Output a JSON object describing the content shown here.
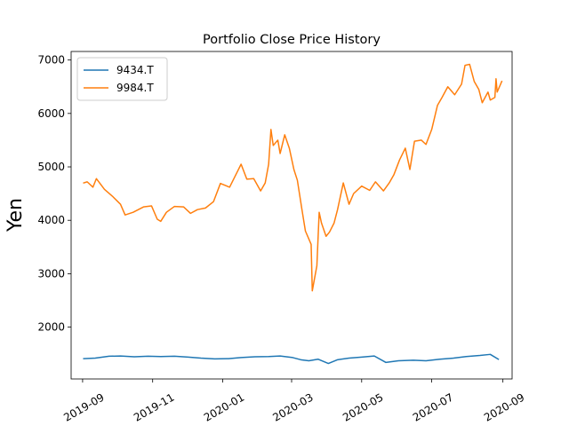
{
  "chart_data": {
    "type": "line",
    "title": "Portfolio Close Price History",
    "xlabel": "",
    "ylabel": "Yen",
    "xlim": [
      "2019-08-22",
      "2020-09-09"
    ],
    "ylim": [
      1030,
      7160
    ],
    "x_ticks": [
      "2019-09",
      "2019-11",
      "2020-01",
      "2020-03",
      "2020-05",
      "2020-07",
      "2020-09"
    ],
    "y_ticks": [
      2000,
      3000,
      4000,
      5000,
      6000,
      7000
    ],
    "grid": false,
    "legend": "top-left",
    "series": [
      {
        "name": "9434.T",
        "color": "#1f77b4",
        "points": [
          [
            "2019-09-02",
            1410
          ],
          [
            "2019-09-12",
            1420
          ],
          [
            "2019-09-24",
            1455
          ],
          [
            "2019-10-04",
            1460
          ],
          [
            "2019-10-16",
            1445
          ],
          [
            "2019-10-28",
            1455
          ],
          [
            "2019-11-08",
            1450
          ],
          [
            "2019-11-20",
            1455
          ],
          [
            "2019-12-02",
            1440
          ],
          [
            "2019-12-13",
            1420
          ],
          [
            "2019-12-25",
            1405
          ],
          [
            "2020-01-06",
            1410
          ],
          [
            "2020-01-17",
            1430
          ],
          [
            "2020-01-29",
            1445
          ],
          [
            "2020-02-10",
            1450
          ],
          [
            "2020-02-20",
            1460
          ],
          [
            "2020-03-02",
            1430
          ],
          [
            "2020-03-09",
            1390
          ],
          [
            "2020-03-16",
            1370
          ],
          [
            "2020-03-24",
            1400
          ],
          [
            "2020-04-02",
            1320
          ],
          [
            "2020-04-10",
            1390
          ],
          [
            "2020-04-20",
            1420
          ],
          [
            "2020-05-01",
            1440
          ],
          [
            "2020-05-12",
            1460
          ],
          [
            "2020-05-22",
            1340
          ],
          [
            "2020-06-02",
            1370
          ],
          [
            "2020-06-15",
            1380
          ],
          [
            "2020-06-26",
            1370
          ],
          [
            "2020-07-08",
            1400
          ],
          [
            "2020-07-20",
            1420
          ],
          [
            "2020-07-31",
            1450
          ],
          [
            "2020-08-12",
            1470
          ],
          [
            "2020-08-21",
            1490
          ],
          [
            "2020-08-28",
            1400
          ]
        ]
      },
      {
        "name": "9984.T",
        "color": "#ff7f0e",
        "points": [
          [
            "2019-09-02",
            4700
          ],
          [
            "2019-09-05",
            4720
          ],
          [
            "2019-09-10",
            4620
          ],
          [
            "2019-09-13",
            4780
          ],
          [
            "2019-09-20",
            4580
          ],
          [
            "2019-09-27",
            4450
          ],
          [
            "2019-10-04",
            4300
          ],
          [
            "2019-10-08",
            4100
          ],
          [
            "2019-10-15",
            4150
          ],
          [
            "2019-10-24",
            4250
          ],
          [
            "2019-10-31",
            4270
          ],
          [
            "2019-11-05",
            4020
          ],
          [
            "2019-11-08",
            3980
          ],
          [
            "2019-11-13",
            4150
          ],
          [
            "2019-11-20",
            4260
          ],
          [
            "2019-11-28",
            4250
          ],
          [
            "2019-12-04",
            4130
          ],
          [
            "2019-12-10",
            4200
          ],
          [
            "2019-12-17",
            4230
          ],
          [
            "2019-12-24",
            4350
          ],
          [
            "2019-12-30",
            4690
          ],
          [
            "2020-01-07",
            4620
          ],
          [
            "2020-01-14",
            4920
          ],
          [
            "2020-01-17",
            5050
          ],
          [
            "2020-01-22",
            4770
          ],
          [
            "2020-01-28",
            4780
          ],
          [
            "2020-02-03",
            4550
          ],
          [
            "2020-02-07",
            4700
          ],
          [
            "2020-02-10",
            5050
          ],
          [
            "2020-02-12",
            5700
          ],
          [
            "2020-02-14",
            5400
          ],
          [
            "2020-02-18",
            5500
          ],
          [
            "2020-02-20",
            5250
          ],
          [
            "2020-02-24",
            5600
          ],
          [
            "2020-02-28",
            5350
          ],
          [
            "2020-03-03",
            4950
          ],
          [
            "2020-03-06",
            4750
          ],
          [
            "2020-03-10",
            4200
          ],
          [
            "2020-03-13",
            3800
          ],
          [
            "2020-03-18",
            3550
          ],
          [
            "2020-03-19",
            2680
          ],
          [
            "2020-03-23",
            3150
          ],
          [
            "2020-03-25",
            4150
          ],
          [
            "2020-03-27",
            3950
          ],
          [
            "2020-03-31",
            3700
          ],
          [
            "2020-04-03",
            3780
          ],
          [
            "2020-04-07",
            3950
          ],
          [
            "2020-04-10",
            4200
          ],
          [
            "2020-04-15",
            4700
          ],
          [
            "2020-04-20",
            4300
          ],
          [
            "2020-04-24",
            4500
          ],
          [
            "2020-05-01",
            4640
          ],
          [
            "2020-05-08",
            4560
          ],
          [
            "2020-05-13",
            4720
          ],
          [
            "2020-05-20",
            4550
          ],
          [
            "2020-05-25",
            4700
          ],
          [
            "2020-05-29",
            4850
          ],
          [
            "2020-06-03",
            5130
          ],
          [
            "2020-06-08",
            5350
          ],
          [
            "2020-06-12",
            4950
          ],
          [
            "2020-06-16",
            5480
          ],
          [
            "2020-06-22",
            5500
          ],
          [
            "2020-06-26",
            5420
          ],
          [
            "2020-07-01",
            5700
          ],
          [
            "2020-07-06",
            6150
          ],
          [
            "2020-07-10",
            6300
          ],
          [
            "2020-07-15",
            6500
          ],
          [
            "2020-07-21",
            6350
          ],
          [
            "2020-07-27",
            6550
          ],
          [
            "2020-07-30",
            6900
          ],
          [
            "2020-08-03",
            6920
          ],
          [
            "2020-08-07",
            6600
          ],
          [
            "2020-08-11",
            6450
          ],
          [
            "2020-08-14",
            6200
          ],
          [
            "2020-08-19",
            6400
          ],
          [
            "2020-08-21",
            6250
          ],
          [
            "2020-08-25",
            6300
          ],
          [
            "2020-08-26",
            6650
          ],
          [
            "2020-08-27",
            6400
          ],
          [
            "2020-08-31",
            6600
          ]
        ]
      }
    ]
  }
}
